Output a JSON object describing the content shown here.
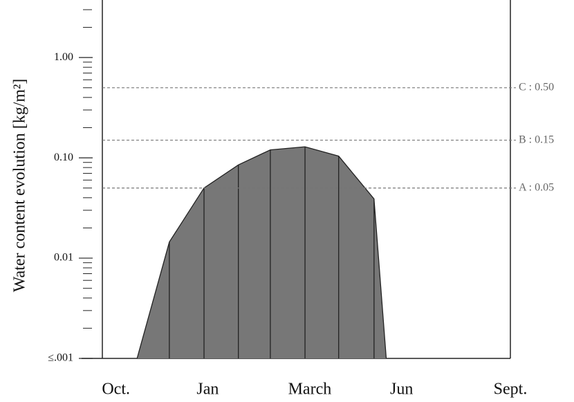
{
  "chart_data": {
    "type": "area",
    "y_label": "Water content evolution [kg/m²]",
    "log_y": true,
    "minor_ticks": true,
    "fill_color": "#777777",
    "line_color": "#222222",
    "x": [
      1.02,
      1.97,
      2.99,
      4.0,
      4.94,
      5.96,
      6.95,
      7.99,
      8.35
    ],
    "values": [
      0.001,
      0.0145,
      0.05,
      0.085,
      0.12,
      0.129,
      0.104,
      0.039,
      0.001
    ],
    "xlim": [
      0,
      12
    ],
    "xticks": [
      {
        "value": 0.4,
        "label": "Oct."
      },
      {
        "value": 3.1,
        "label": "Jan"
      },
      {
        "value": 6.1,
        "label": "March"
      },
      {
        "value": 8.8,
        "label": "Jun"
      },
      {
        "value": 12,
        "label": "Sept."
      }
    ],
    "ylim": [
      0.001,
      3.3
    ],
    "yticks": [
      {
        "value": 0.001,
        "label": "≤.001"
      },
      0.01,
      {
        "value": 0.1,
        "label": "0.10"
      },
      {
        "value": 1,
        "label": "1.00"
      }
    ],
    "thresholds": [
      {
        "value": 0.05,
        "label": "A : 0.05"
      },
      {
        "value": 0.15,
        "label": "B : 0.15"
      },
      {
        "value": 0.5,
        "label": "C : 0.50"
      }
    ]
  }
}
